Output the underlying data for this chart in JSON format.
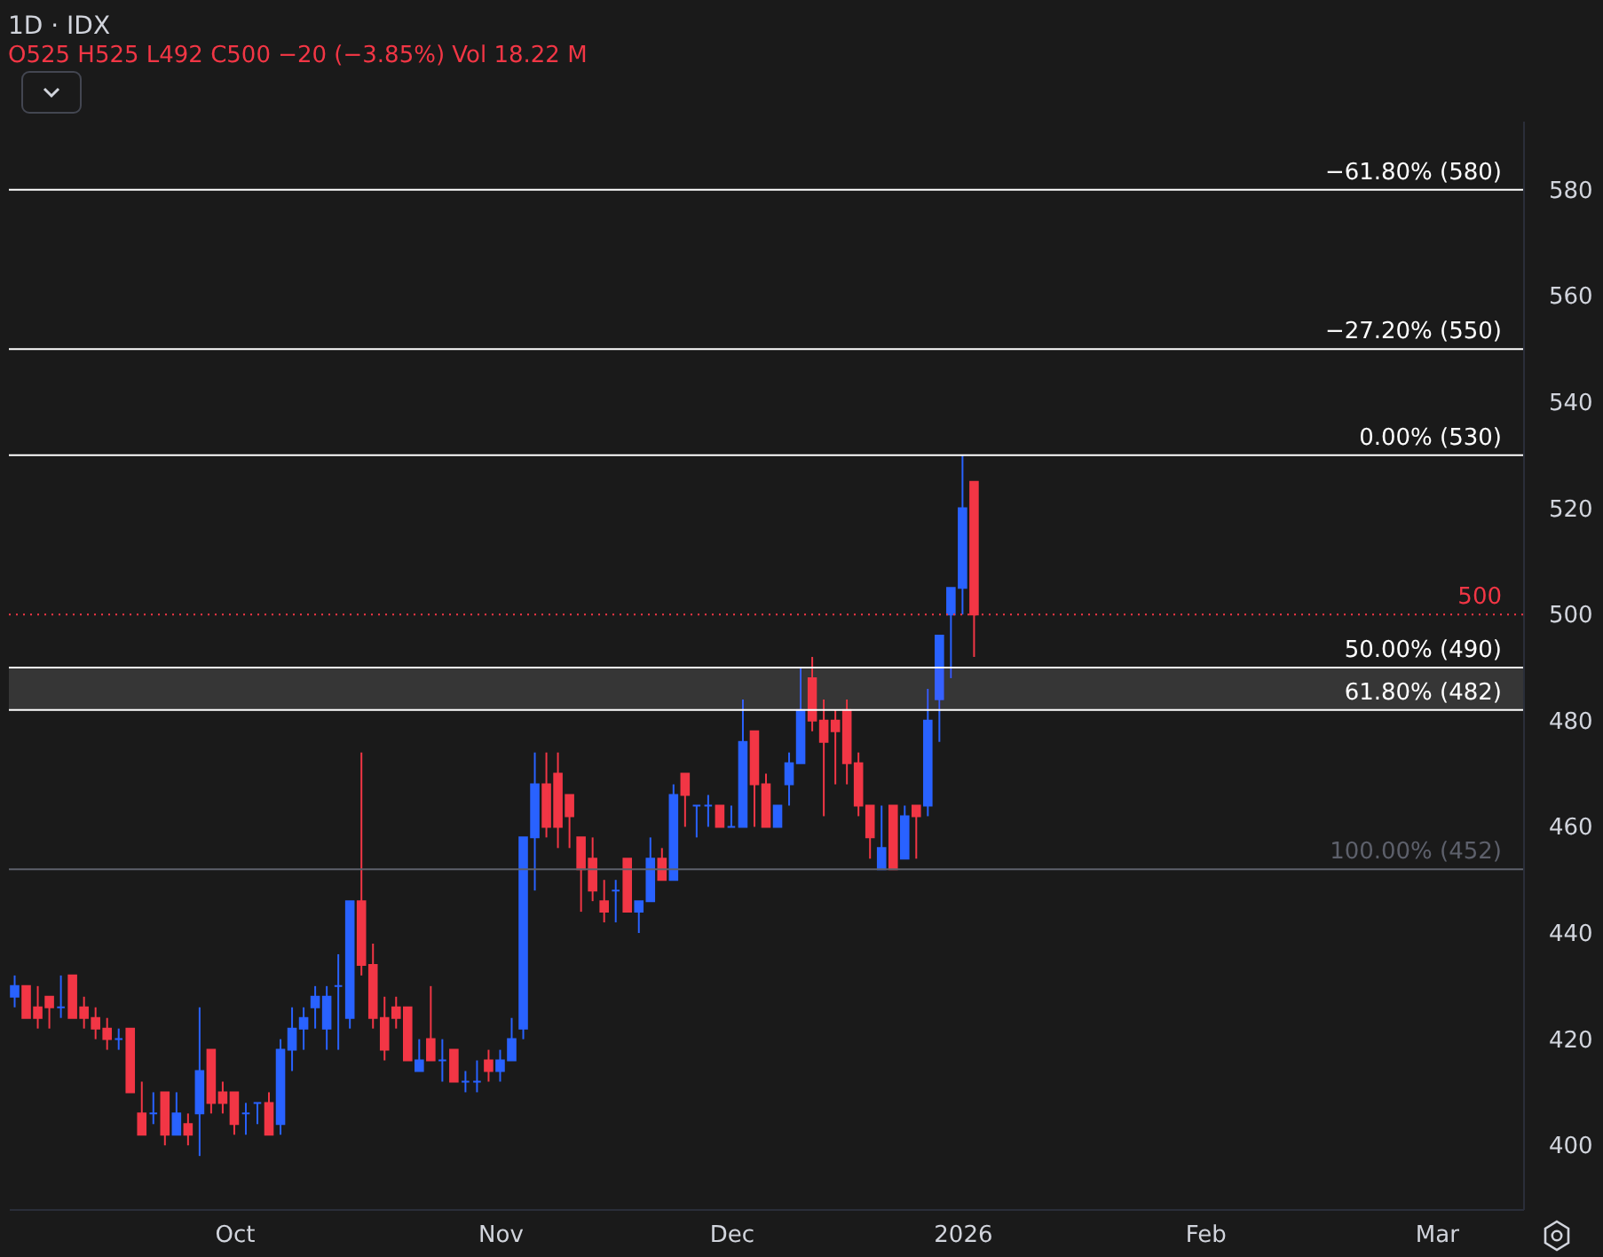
{
  "chart_data": {
    "type": "candlestick",
    "title": "1D · IDX",
    "subtitle": "O525 H525 L492 C500 −20 (−3.85%) Vol 18.22 M",
    "categories": [
      null,
      null,
      null,
      null,
      null,
      null,
      null,
      null,
      null,
      null,
      null,
      null,
      null,
      null,
      null,
      null,
      null,
      null,
      null,
      "Oct",
      null,
      null,
      null,
      null,
      null,
      null,
      null,
      null,
      null,
      null,
      null,
      null,
      null,
      null,
      null,
      null,
      null,
      null,
      null,
      null,
      null,
      null,
      "Nov",
      null,
      null,
      null,
      null,
      null,
      null,
      null,
      null,
      null,
      null,
      null,
      null,
      null,
      null,
      null,
      null,
      null,
      null,
      null,
      "Dec",
      null,
      null,
      null,
      null,
      null,
      null,
      null,
      null,
      null,
      null,
      null,
      null,
      null,
      null,
      null,
      null,
      null,
      null,
      null,
      "2026",
      null,
      null,
      null,
      null,
      null,
      null,
      null,
      null,
      null,
      null,
      null,
      null,
      null,
      null,
      null,
      null,
      null,
      null,
      null,
      null,
      "Feb",
      null,
      null,
      null,
      null,
      null,
      null,
      null,
      null,
      null,
      null,
      null,
      null,
      null,
      null,
      null,
      null,
      null,
      null,
      null,
      "Mar",
      null,
      null,
      null,
      null,
      null,
      null,
      null
    ],
    "ohlc": [
      [
        428,
        432,
        426,
        430
      ],
      [
        430,
        430,
        424,
        424
      ],
      [
        426,
        430,
        422,
        424
      ],
      [
        428,
        428,
        422,
        426
      ],
      [
        426,
        432,
        424,
        426
      ],
      [
        432,
        432,
        424,
        424
      ],
      [
        426,
        428,
        422,
        424
      ],
      [
        424,
        426,
        420,
        422
      ],
      [
        422,
        424,
        418,
        420
      ],
      [
        420,
        422,
        418,
        420
      ],
      [
        422,
        422,
        410,
        410
      ],
      [
        406,
        412,
        402,
        402
      ],
      [
        406,
        410,
        404,
        406
      ],
      [
        410,
        410,
        400,
        402
      ],
      [
        402,
        410,
        402,
        406
      ],
      [
        404,
        406,
        400,
        402
      ],
      [
        406,
        426,
        398,
        414
      ],
      [
        418,
        418,
        406,
        408
      ],
      [
        410,
        412,
        406,
        408
      ],
      [
        410,
        410,
        402,
        404
      ],
      [
        406,
        408,
        402,
        406
      ],
      [
        408,
        408,
        404,
        408
      ],
      [
        408,
        410,
        402,
        402
      ],
      [
        404,
        420,
        402,
        418
      ],
      [
        418,
        426,
        414,
        422
      ],
      [
        422,
        426,
        418,
        424
      ],
      [
        426,
        430,
        422,
        428
      ],
      [
        422,
        430,
        418,
        428
      ],
      [
        430,
        436,
        418,
        430
      ],
      [
        424,
        446,
        422,
        446
      ],
      [
        446,
        474,
        432,
        434
      ],
      [
        434,
        438,
        422,
        424
      ],
      [
        424,
        428,
        416,
        418
      ],
      [
        426,
        428,
        422,
        424
      ],
      [
        426,
        426,
        416,
        416
      ],
      [
        414,
        420,
        414,
        416
      ],
      [
        420,
        430,
        416,
        416
      ],
      [
        416,
        420,
        412,
        416
      ],
      [
        418,
        418,
        412,
        412
      ],
      [
        412,
        414,
        410,
        412
      ],
      [
        412,
        416,
        410,
        412
      ],
      [
        416,
        418,
        412,
        414
      ],
      [
        414,
        418,
        412,
        416
      ],
      [
        416,
        424,
        416,
        420
      ],
      [
        422,
        458,
        420,
        458
      ],
      [
        458,
        474,
        448,
        468
      ],
      [
        468,
        474,
        458,
        460
      ],
      [
        470,
        474,
        456,
        460
      ],
      [
        466,
        466,
        456,
        462
      ],
      [
        458,
        458,
        444,
        452
      ],
      [
        454,
        458,
        446,
        448
      ],
      [
        446,
        450,
        442,
        444
      ],
      [
        448,
        450,
        442,
        448
      ],
      [
        454,
        454,
        444,
        444
      ],
      [
        444,
        446,
        440,
        446
      ],
      [
        446,
        458,
        446,
        454
      ],
      [
        454,
        456,
        450,
        450
      ],
      [
        450,
        468,
        450,
        466
      ],
      [
        470,
        470,
        460,
        466
      ],
      [
        464,
        464,
        458,
        464
      ],
      [
        464,
        466,
        460,
        464
      ],
      [
        464,
        464,
        460,
        460
      ],
      [
        460,
        464,
        460,
        460
      ],
      [
        460,
        484,
        460,
        476
      ],
      [
        478,
        478,
        460,
        468
      ],
      [
        468,
        470,
        460,
        460
      ],
      [
        460,
        464,
        460,
        464
      ],
      [
        468,
        474,
        464,
        472
      ],
      [
        472,
        490,
        472,
        482
      ],
      [
        488,
        492,
        478,
        480
      ],
      [
        480,
        484,
        462,
        476
      ],
      [
        480,
        482,
        468,
        478
      ],
      [
        482,
        484,
        468,
        472
      ],
      [
        472,
        474,
        462,
        464
      ],
      [
        464,
        464,
        454,
        458
      ],
      [
        452,
        464,
        452,
        456
      ],
      [
        464,
        464,
        452,
        452
      ],
      [
        454,
        464,
        454,
        462
      ],
      [
        464,
        464,
        454,
        462
      ],
      [
        464,
        486,
        462,
        480
      ],
      [
        484,
        496,
        476,
        496
      ],
      [
        500,
        505,
        488,
        505
      ],
      [
        505,
        530,
        500,
        520
      ],
      [
        525,
        525,
        492,
        500
      ],
      null,
      null,
      null,
      null,
      null,
      null,
      null,
      null,
      null,
      null,
      null,
      null,
      null,
      null,
      null,
      null,
      null,
      null,
      null,
      null,
      null,
      null,
      null,
      null,
      null,
      null,
      null,
      null,
      null,
      null,
      null,
      null,
      null,
      null,
      null,
      null,
      null,
      null,
      null,
      null,
      null,
      null,
      null,
      null,
      null,
      null,
      null
    ],
    "colors": [
      "#2962ff",
      "#f23645",
      "#f23645",
      "#f23645",
      "#2962ff",
      "#f23645",
      "#f23645",
      "#f23645",
      "#f23645",
      "#2962ff",
      "#f23645",
      "#f23645",
      "#2962ff",
      "#f23645",
      "#2962ff",
      "#f23645",
      "#2962ff",
      "#f23645",
      "#f23645",
      "#f23645",
      "#2962ff",
      "#2962ff",
      "#f23645",
      "#2962ff",
      "#2962ff",
      "#2962ff",
      "#2962ff",
      "#2962ff",
      "#2962ff",
      "#2962ff",
      "#f23645",
      "#f23645",
      "#f23645",
      "#f23645",
      "#f23645",
      "#2962ff",
      "#f23645",
      "#2962ff",
      "#f23645",
      "#2962ff",
      "#2962ff",
      "#f23645",
      "#2962ff",
      "#2962ff",
      "#2962ff",
      "#2962ff",
      "#f23645",
      "#f23645",
      "#f23645",
      "#f23645",
      "#f23645",
      "#f23645",
      "#2962ff",
      "#f23645",
      "#2962ff",
      "#2962ff",
      "#f23645",
      "#2962ff",
      "#f23645",
      "#2962ff",
      "#2962ff",
      "#f23645",
      "#2962ff",
      "#2962ff",
      "#f23645",
      "#f23645",
      "#2962ff",
      "#2962ff",
      "#2962ff",
      "#f23645",
      "#f23645",
      "#f23645",
      "#f23645",
      "#f23645",
      "#f23645",
      "#2962ff",
      "#f23645",
      "#2962ff",
      "#f23645",
      "#2962ff",
      "#2962ff",
      "#2962ff",
      "#2962ff",
      "#f23645",
      null,
      null,
      null,
      null,
      null,
      null,
      null,
      null,
      null,
      null,
      null,
      null,
      null,
      null,
      null,
      null,
      null,
      null,
      null,
      null,
      null,
      null,
      null,
      null,
      null,
      null,
      null,
      null,
      null,
      null,
      null,
      null,
      null,
      null,
      null,
      null,
      null,
      null,
      null,
      null,
      null,
      null,
      null,
      null,
      null,
      null,
      null
    ],
    "ylim": [
      388,
      593
    ],
    "yticks": [
      400,
      420,
      440,
      460,
      480,
      500,
      520,
      540,
      560,
      580
    ],
    "bands": [
      {
        "axis": "y",
        "from": 482,
        "to": 490,
        "color": "#363636"
      }
    ],
    "ref_lines": [
      {
        "axis": "y",
        "value": 580,
        "label": "−61.80% (580)",
        "color": "#ffffff"
      },
      {
        "axis": "y",
        "value": 550,
        "label": "−27.20% (550)",
        "color": "#ffffff"
      },
      {
        "axis": "y",
        "value": 530,
        "label": "0.00% (530)",
        "color": "#ffffff"
      },
      {
        "axis": "y",
        "value": 490,
        "label": "50.00% (490)",
        "color": "#ffffff"
      },
      {
        "axis": "y",
        "value": 482,
        "label": "61.80% (482)",
        "color": "#ffffff"
      },
      {
        "axis": "y",
        "value": 452,
        "label": "100.00% (452)",
        "color": "#5d606b"
      },
      {
        "axis": "y",
        "value": 500,
        "label": "500",
        "color": "#f23645",
        "line_style": "dotted"
      }
    ],
    "grid": false
  }
}
